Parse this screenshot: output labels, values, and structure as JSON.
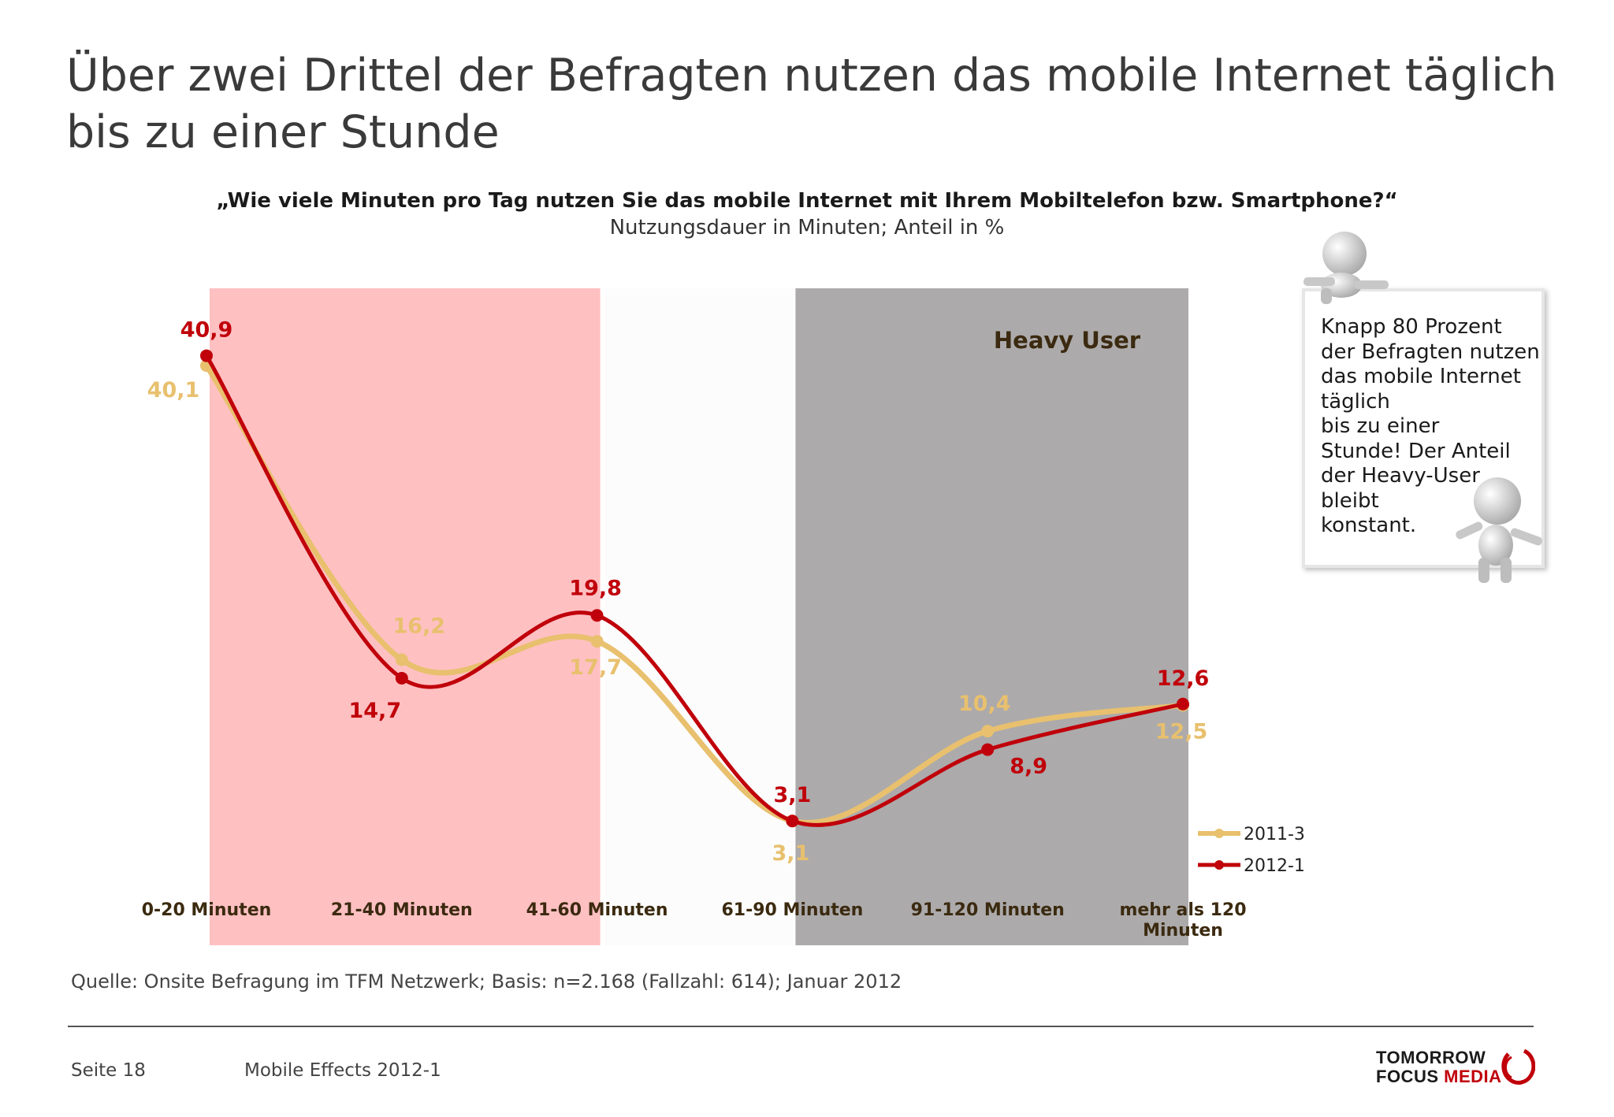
{
  "page": {
    "title": "Über zwei Drittel der Befragten nutzen das mobile Internet täglich bis zu einer Stunde",
    "source": "Quelle: Onsite Befragung im TFM Netzwerk; Basis: n=2.168 (Fallzahl: 614); Januar 2012",
    "page_number": "Seite 18",
    "document": "Mobile Effects 2012-1",
    "logo": {
      "line1": "TOMORROW",
      "line2a": "FOCUS ",
      "line2b": "MEDIA"
    }
  },
  "callout": {
    "text": "Knapp 80 Prozent\nder Befragten nutzen\ndas mobile Internet\ntäglich\nbis zu einer\nStunde! Der Anteil\nder Heavy-User\nbleibt\nkonstant."
  },
  "chart_data": {
    "type": "line",
    "title": "„Wie viele Minuten pro Tag nutzen Sie das mobile Internet mit Ihrem Mobiltelefon bzw. Smartphone?“",
    "subtitle": "Nutzungsdauer in Minuten; Anteil in %",
    "categories": [
      "0-20 Minuten",
      "21-40 Minuten",
      "41-60 Minuten",
      "61-90 Minuten",
      "91-120 Minuten",
      "mehr als 120 Minuten"
    ],
    "series": [
      {
        "name": "2011-3",
        "color": "#e8c06e",
        "values": [
          40.1,
          16.2,
          17.7,
          3.1,
          10.4,
          12.5
        ],
        "labels": [
          "40,1",
          "16,2",
          "17,7",
          "3,1",
          "10,4",
          "12,5"
        ]
      },
      {
        "name": "2012-1",
        "color": "#c0000a",
        "values": [
          40.9,
          14.7,
          19.8,
          3.1,
          8.9,
          12.6
        ],
        "labels": [
          "40,9",
          "14,7",
          "19,8",
          "3,1",
          "8,9",
          "12,6"
        ]
      }
    ],
    "ylim": [
      1,
      41
    ],
    "highlight_bands": [
      {
        "from_category": 0,
        "to_category": 2,
        "color": "#ffc0c2",
        "label": ""
      },
      {
        "from_category": 3,
        "to_category": 5,
        "color": "#acaaab",
        "label": "Heavy User"
      }
    ],
    "legend": "right",
    "grid": false
  }
}
